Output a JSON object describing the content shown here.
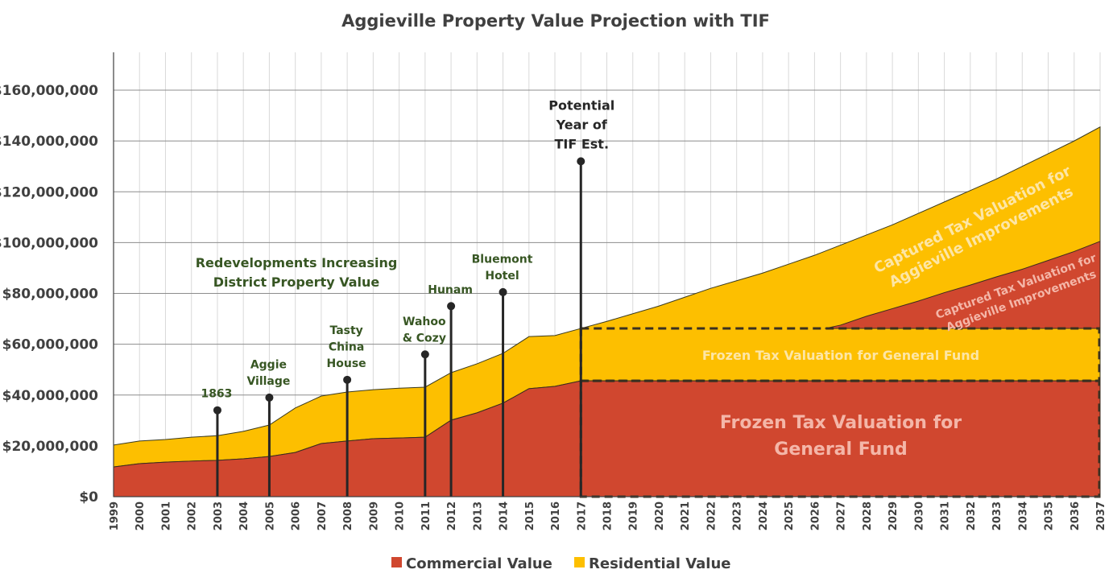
{
  "chart_data": {
    "type": "area",
    "title": "Aggieville Property Value Projection with TIF",
    "xlabel": "",
    "ylabel": "",
    "ylim": [
      0,
      160000000
    ],
    "yticks": [
      "$0",
      "$20,000,000",
      "$40,000,000",
      "$60,000,000",
      "$80,000,000",
      "$100,000,000",
      "$120,000,000",
      "$140,000,000",
      "$160,000,000"
    ],
    "ytick_values": [
      0,
      20000000,
      40000000,
      60000000,
      80000000,
      100000000,
      120000000,
      140000000,
      160000000
    ],
    "grid": true,
    "legend_position": "bottom",
    "colors": {
      "commercial": "#d0472f",
      "residential": "#fdbf00",
      "annotation_text": "#375623",
      "overlay_text": "#f4b6a8",
      "overlay_text_yellow": "#fde6a6"
    },
    "x": [
      1999,
      2000,
      2001,
      2002,
      2003,
      2004,
      2005,
      2006,
      2007,
      2008,
      2009,
      2010,
      2011,
      2012,
      2013,
      2014,
      2015,
      2016,
      2017,
      2018,
      2019,
      2020,
      2021,
      2022,
      2023,
      2024,
      2025,
      2026,
      2027,
      2028,
      2029,
      2030,
      2031,
      2032,
      2033,
      2034,
      2035,
      2036,
      2037
    ],
    "series": [
      {
        "name": "Commercial Value",
        "values": [
          11.7,
          13.0,
          13.6,
          14.0,
          14.3,
          14.9,
          15.8,
          17.4,
          20.9,
          21.9,
          22.8,
          23.1,
          23.4,
          30.1,
          33.0,
          36.8,
          42.5,
          43.4,
          45.6,
          45.6,
          45.6,
          45.6,
          45.6,
          45.6,
          45.6,
          45.6,
          45.6,
          45.6,
          45.6,
          45.6,
          45.6,
          45.6,
          45.6,
          45.6,
          45.6,
          45.6,
          45.6,
          45.6,
          45.6
        ],
        "unit": "millions USD"
      },
      {
        "name": "Residential Value",
        "stacked_total": [
          20.3,
          21.9,
          22.5,
          23.4,
          24.0,
          25.7,
          28.2,
          34.9,
          39.6,
          41.2,
          42.1,
          42.7,
          43.1,
          48.8,
          52.3,
          56.4,
          63.0,
          63.4,
          66.2,
          69.0,
          72.0,
          75.0,
          78.5,
          82.0,
          85.0,
          88.0,
          91.5,
          95.0,
          99.0,
          103.0,
          107.0,
          111.5,
          116.0,
          120.5,
          125.0,
          130.0,
          135.0,
          140.0,
          145.5
        ],
        "unit": "millions USD"
      }
    ],
    "captured_commercial": {
      "x": [
        2026.4,
        2027,
        2028,
        2029,
        2030,
        2031,
        2032,
        2033,
        2034,
        2035,
        2036,
        2037
      ],
      "values": [
        66.2,
        67.5,
        71.0,
        74.0,
        77.0,
        80.3,
        83.3,
        86.5,
        89.5,
        93.0,
        96.5,
        100.5
      ]
    },
    "frozen": {
      "start": 2017,
      "end": 2037,
      "commercial": 45.6,
      "total": 66.2
    },
    "annotations": [
      {
        "year": 2003,
        "value": 34,
        "lines": [
          "1863"
        ]
      },
      {
        "year": 2005,
        "value": 39,
        "lines": [
          "Aggie",
          "Village"
        ]
      },
      {
        "year": 2008,
        "value": 46,
        "lines": [
          "Tasty",
          "China",
          "House"
        ]
      },
      {
        "year": 2011,
        "value": 56,
        "lines": [
          "Wahoo",
          "& Cozy"
        ]
      },
      {
        "year": 2012,
        "value": 75,
        "lines": [
          "Hunam"
        ]
      },
      {
        "year": 2014,
        "value": 80.5,
        "lines": [
          "Bluemont",
          "Hotel"
        ]
      },
      {
        "year": 2017,
        "value": 132,
        "lines": [
          "Potential",
          "Year of",
          "TIF Est."
        ],
        "dark": true
      }
    ],
    "labels": {
      "redevelopments": [
        "Redevelopments Increasing",
        "District Property Value"
      ],
      "captured_residential": [
        "Captured Tax Valuation for",
        "Aggieville Improvements"
      ],
      "captured_commercial": [
        "Captured Tax Valuation for",
        "Aggieville Improvements"
      ],
      "frozen_residential": "Frozen Tax Valuation for General Fund",
      "frozen_commercial": [
        "Frozen Tax Valuation for",
        "General Fund"
      ]
    },
    "legend": [
      "Commercial Value",
      "Residential Value"
    ]
  }
}
